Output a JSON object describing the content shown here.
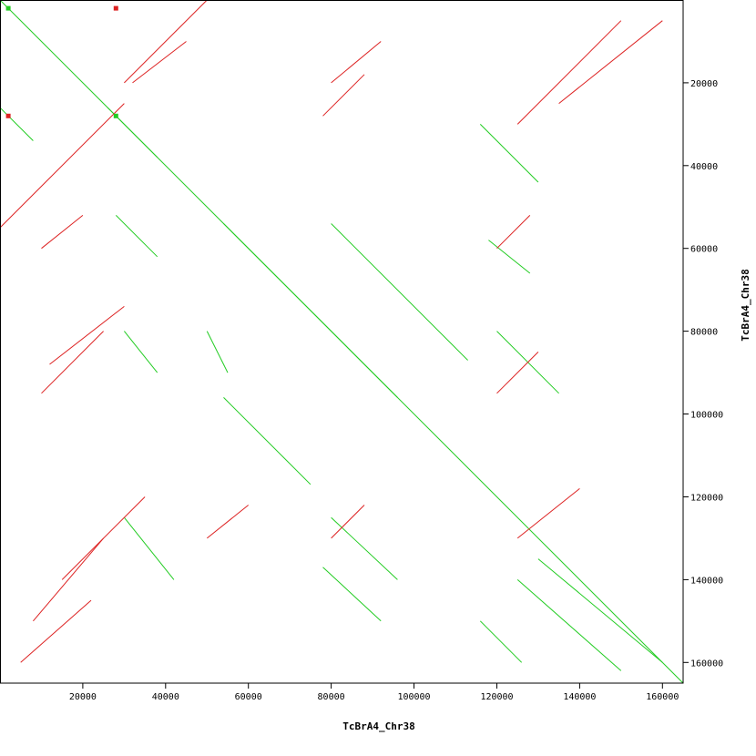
{
  "chart_data": {
    "type": "scatter",
    "title": "",
    "xlabel": "TcBrA4_Chr38",
    "ylabel": "TcBrA4_Chr38",
    "xlim": [
      0,
      165000
    ],
    "ylim": [
      0,
      165000
    ],
    "x_ticks": [
      20000,
      40000,
      60000,
      80000,
      100000,
      120000,
      140000,
      160000
    ],
    "y_ticks": [
      20000,
      40000,
      60000,
      80000,
      100000,
      120000,
      140000,
      160000
    ],
    "grid": false,
    "legend": "none",
    "colors": {
      "forward": "#22cc22",
      "reverse": "#dd2222",
      "axis": "#000000"
    },
    "series": [
      {
        "name": "",
        "color": "#22cc22",
        "segments": [
          [
            0,
            0,
            165000,
            165000
          ],
          [
            54000,
            54000,
            96000,
            96000
          ],
          [
            54000,
            96000,
            75000,
            117000
          ],
          [
            80000,
            54000,
            113000,
            87000
          ],
          [
            26000,
            26000,
            38000,
            38000
          ],
          [
            0,
            26000,
            8000,
            34000
          ],
          [
            116000,
            30000,
            130000,
            44000
          ],
          [
            118000,
            58000,
            128000,
            66000
          ],
          [
            120000,
            80000,
            135000,
            95000
          ],
          [
            130000,
            135000,
            160000,
            160000
          ],
          [
            125000,
            140000,
            150000,
            162000
          ],
          [
            78000,
            137000,
            92000,
            150000
          ],
          [
            80000,
            125000,
            96000,
            140000
          ],
          [
            30000,
            125000,
            42000,
            140000
          ],
          [
            28000,
            52000,
            38000,
            62000
          ],
          [
            30000,
            80000,
            38000,
            90000
          ],
          [
            50000,
            80000,
            55000,
            90000
          ],
          [
            116000,
            150000,
            126000,
            160000
          ]
        ]
      },
      {
        "name": "",
        "color": "#dd2222",
        "segments": [
          [
            0,
            55000,
            30000,
            25000
          ],
          [
            30000,
            20000,
            50000,
            0
          ],
          [
            10000,
            95000,
            25000,
            80000
          ],
          [
            12000,
            88000,
            30000,
            74000
          ],
          [
            8000,
            150000,
            25000,
            130000
          ],
          [
            15000,
            140000,
            35000,
            120000
          ],
          [
            5000,
            160000,
            22000,
            145000
          ],
          [
            50000,
            130000,
            60000,
            122000
          ],
          [
            80000,
            20000,
            92000,
            10000
          ],
          [
            78000,
            28000,
            88000,
            18000
          ],
          [
            125000,
            30000,
            150000,
            5000
          ],
          [
            135000,
            25000,
            160000,
            5000
          ],
          [
            120000,
            95000,
            130000,
            85000
          ],
          [
            125000,
            130000,
            140000,
            118000
          ],
          [
            80000,
            130000,
            88000,
            122000
          ],
          [
            120000,
            60000,
            128000,
            52000
          ],
          [
            10000,
            60000,
            20000,
            52000
          ],
          [
            32000,
            20000,
            45000,
            10000
          ]
        ]
      }
    ],
    "markers": [
      {
        "x": 2000,
        "y": 2000,
        "color": "#22cc22"
      },
      {
        "x": 28000,
        "y": 28000,
        "color": "#22cc22"
      },
      {
        "x": 28000,
        "y": 2000,
        "color": "#dd2222"
      },
      {
        "x": 2000,
        "y": 28000,
        "color": "#dd2222"
      }
    ]
  }
}
